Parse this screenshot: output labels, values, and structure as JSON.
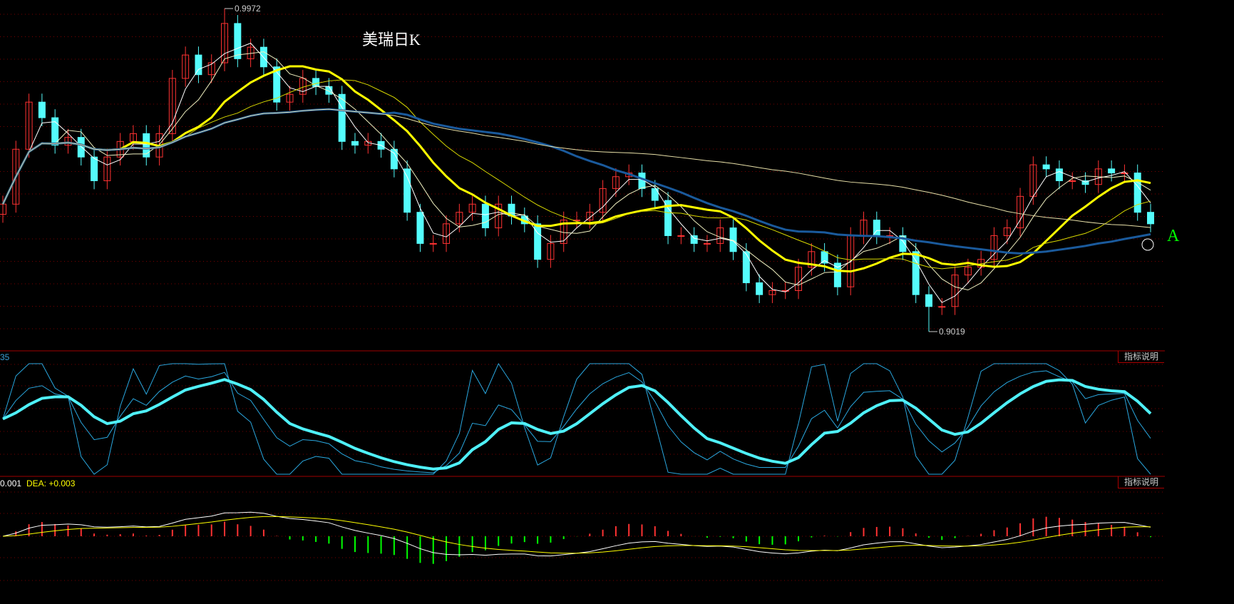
{
  "title": "美瑞日K",
  "chart_data": {
    "type": "candlestick",
    "price_high_label": "0.9972",
    "price_low_label": "0.9019",
    "ylim": [
      0.9019,
      0.9972
    ],
    "closes": [
      0.9395,
      0.9557,
      0.9696,
      0.965,
      0.9569,
      0.9592,
      0.9534,
      0.9464,
      0.9534,
      0.958,
      0.9603,
      0.9534,
      0.9603,
      0.9766,
      0.9835,
      0.9777,
      0.9812,
      0.9928,
      0.9824,
      0.9858,
      0.98,
      0.9696,
      0.9719,
      0.9766,
      0.9742,
      0.9719,
      0.958,
      0.9569,
      0.958,
      0.9557,
      0.9499,
      0.9371,
      0.9279,
      0.9279,
      0.9337,
      0.9371,
      0.9395,
      0.9325,
      0.9395,
      0.936,
      0.9337,
      0.9232,
      0.9279,
      0.9348,
      0.9348,
      0.9371,
      0.9441,
      0.9476,
      0.9487,
      0.9441,
      0.9406,
      0.9302,
      0.9302,
      0.9279,
      0.9279,
      0.9325,
      0.9255,
      0.9163,
      0.9128,
      0.914,
      0.914,
      0.9209,
      0.9255,
      0.9221,
      0.9151,
      0.9302,
      0.9348,
      0.9302,
      0.9302,
      0.9255,
      0.9128,
      0.9093,
      0.9093,
      0.9186,
      0.9209,
      0.9232,
      0.9302,
      0.9325,
      0.9418,
      0.9511,
      0.9499,
      0.9464,
      0.9464,
      0.9453,
      0.9499,
      0.9487,
      0.9487,
      0.9371,
      0.9337
    ],
    "moving_averages": [
      {
        "period": 5,
        "color": "#ffffff"
      },
      {
        "period": 10,
        "color": "#f0f0c0"
      },
      {
        "period": 20,
        "color": "#ffff00",
        "thick": true
      },
      {
        "period": 30,
        "color": "#d8d800"
      },
      {
        "period": 60,
        "color": "#1a5a9c",
        "thick": true
      },
      {
        "period": 120,
        "color": "#e8e0a8"
      }
    ],
    "up_color": "#ff3232",
    "down_color": "#54fcfc"
  },
  "kdj": {
    "label": "35",
    "help": "指标说明",
    "color": "#4ff0f8",
    "thin_color": "#2aa8e0"
  },
  "macd": {
    "dif_text": "+0.001",
    "dea_text": "DEA: +0.003",
    "help": "指标说明",
    "dif_color": "#ffffff",
    "dea_color": "#ffff00",
    "pos_color": "#ff3232",
    "neg_color": "#00ff00"
  },
  "marker": "A"
}
